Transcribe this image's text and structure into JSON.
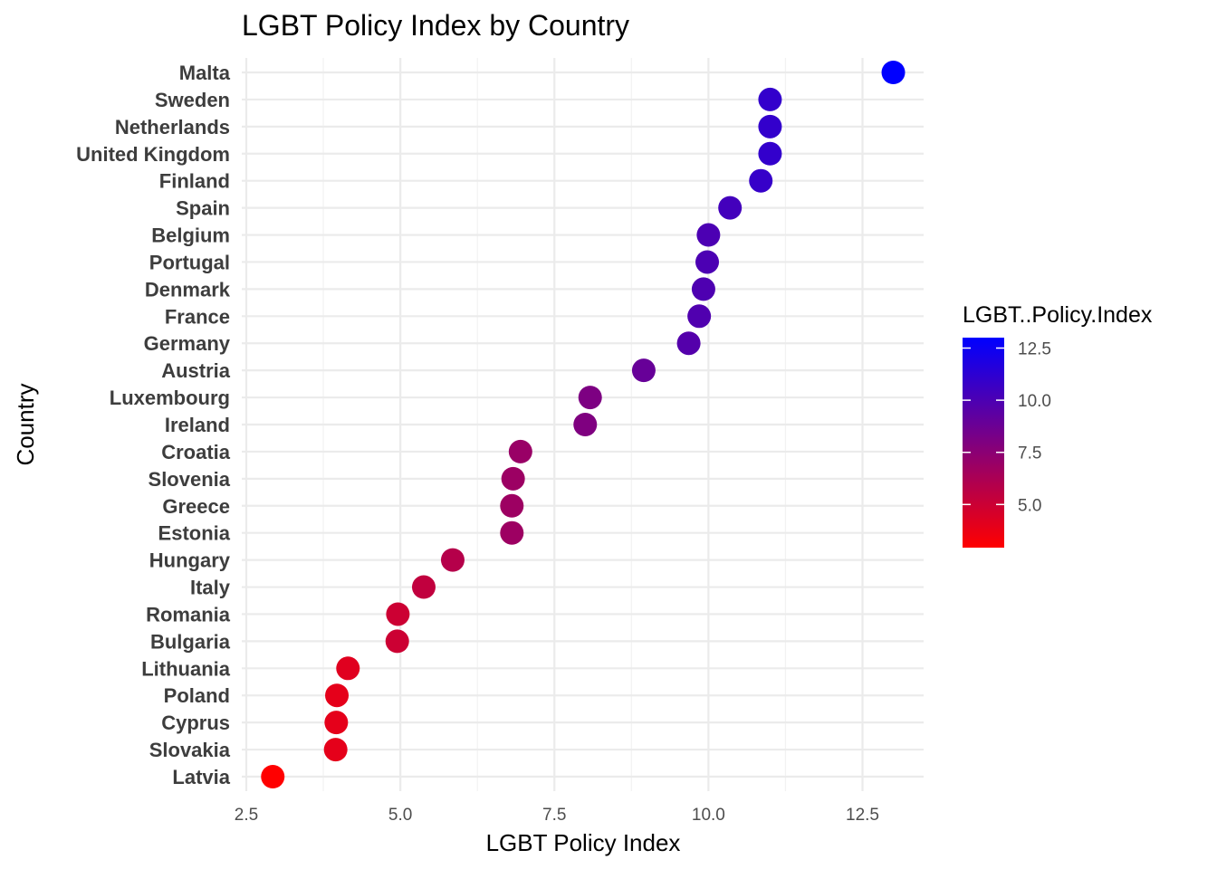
{
  "chart_data": {
    "type": "scatter",
    "title": "LGBT Policy Index by Country",
    "xlabel": "LGBT Policy Index",
    "ylabel": "Country",
    "xlim": [
      2.5,
      13.5
    ],
    "xticks": [
      2.5,
      5.0,
      7.5,
      10.0,
      12.5
    ],
    "xtick_labels": [
      "2.5",
      "5.0",
      "7.5",
      "10.0",
      "12.5"
    ],
    "grid": true,
    "points": [
      {
        "country": "Malta",
        "value": 13.0
      },
      {
        "country": "Sweden",
        "value": 11.0
      },
      {
        "country": "Netherlands",
        "value": 11.0
      },
      {
        "country": "United Kingdom",
        "value": 11.0
      },
      {
        "country": "Finland",
        "value": 10.85
      },
      {
        "country": "Spain",
        "value": 10.35
      },
      {
        "country": "Belgium",
        "value": 10.0
      },
      {
        "country": "Portugal",
        "value": 9.98
      },
      {
        "country": "Denmark",
        "value": 9.92
      },
      {
        "country": "France",
        "value": 9.85
      },
      {
        "country": "Germany",
        "value": 9.68
      },
      {
        "country": "Austria",
        "value": 8.95
      },
      {
        "country": "Luxembourg",
        "value": 8.08
      },
      {
        "country": "Ireland",
        "value": 8.0
      },
      {
        "country": "Croatia",
        "value": 6.95
      },
      {
        "country": "Slovenia",
        "value": 6.83
      },
      {
        "country": "Greece",
        "value": 6.81
      },
      {
        "country": "Estonia",
        "value": 6.81
      },
      {
        "country": "Hungary",
        "value": 5.85
      },
      {
        "country": "Italy",
        "value": 5.38
      },
      {
        "country": "Romania",
        "value": 4.96
      },
      {
        "country": "Bulgaria",
        "value": 4.95
      },
      {
        "country": "Lithuania",
        "value": 4.15
      },
      {
        "country": "Poland",
        "value": 3.97
      },
      {
        "country": "Cyprus",
        "value": 3.96
      },
      {
        "country": "Slovakia",
        "value": 3.95
      },
      {
        "country": "Latvia",
        "value": 2.93
      }
    ],
    "legend": {
      "title": "LGBT..Policy.Index",
      "placement": "right",
      "ticks": [
        12.5,
        10.0,
        7.5,
        5.0
      ],
      "tick_labels": [
        "12.5",
        "10.0",
        "7.5",
        "5.0"
      ],
      "range": [
        2.93,
        13.0
      ],
      "color_low": "#ff0000",
      "color_high": "#0000ff"
    }
  }
}
